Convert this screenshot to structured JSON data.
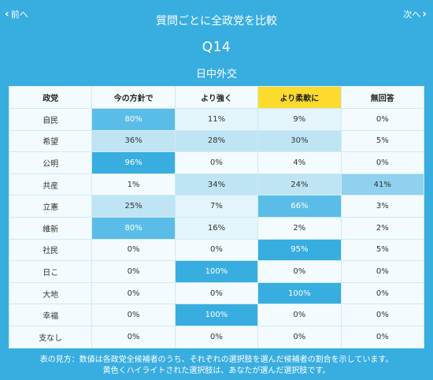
{
  "nav": {
    "prev_label": "前へ",
    "next_label": "次へ"
  },
  "header": {
    "title": "質問ごとに全政党を比較"
  },
  "question": {
    "number": "Q14",
    "topic": "日中外交"
  },
  "table": {
    "columns": [
      "政党",
      "今の方針で",
      "より強く",
      "より柔軟に",
      "無回答"
    ],
    "highlight_column": 3,
    "rows": [
      {
        "party": "自民",
        "values": [
          "80%",
          "11%",
          "9%",
          "0%"
        ],
        "pct": [
          80,
          11,
          9,
          0
        ]
      },
      {
        "party": "希望",
        "values": [
          "36%",
          "28%",
          "30%",
          "5%"
        ],
        "pct": [
          36,
          28,
          30,
          5
        ]
      },
      {
        "party": "公明",
        "values": [
          "96%",
          "0%",
          "4%",
          "0%"
        ],
        "pct": [
          96,
          0,
          4,
          0
        ]
      },
      {
        "party": "共産",
        "values": [
          "1%",
          "34%",
          "24%",
          "41%"
        ],
        "pct": [
          1,
          34,
          24,
          41
        ]
      },
      {
        "party": "立憲",
        "values": [
          "25%",
          "7%",
          "66%",
          "3%"
        ],
        "pct": [
          25,
          7,
          66,
          3
        ]
      },
      {
        "party": "維新",
        "values": [
          "80%",
          "16%",
          "2%",
          "2%"
        ],
        "pct": [
          80,
          16,
          2,
          2
        ]
      },
      {
        "party": "社民",
        "values": [
          "0%",
          "0%",
          "95%",
          "5%"
        ],
        "pct": [
          0,
          0,
          95,
          5
        ]
      },
      {
        "party": "日こ",
        "values": [
          "0%",
          "100%",
          "0%",
          "0%"
        ],
        "pct": [
          0,
          100,
          0,
          0
        ]
      },
      {
        "party": "大地",
        "values": [
          "0%",
          "0%",
          "100%",
          "0%"
        ],
        "pct": [
          0,
          0,
          100,
          0
        ]
      },
      {
        "party": "幸福",
        "values": [
          "0%",
          "100%",
          "0%",
          "0%"
        ],
        "pct": [
          0,
          100,
          0,
          0
        ]
      },
      {
        "party": "支なし",
        "values": [
          "0%",
          "0%",
          "0%",
          "0%"
        ],
        "pct": [
          0,
          0,
          0,
          0
        ]
      }
    ]
  },
  "footer": {
    "line1": "表の見方：数値は各政党全候補者のうち、それぞれの選択肢を選んだ候補者の割合を示しています。",
    "line2": "黄色くハイライトされた選択肢は、あなたが選んだ選択肢です。"
  },
  "colors": {
    "background": "#38ade0",
    "highlight": "#fddb2d"
  }
}
